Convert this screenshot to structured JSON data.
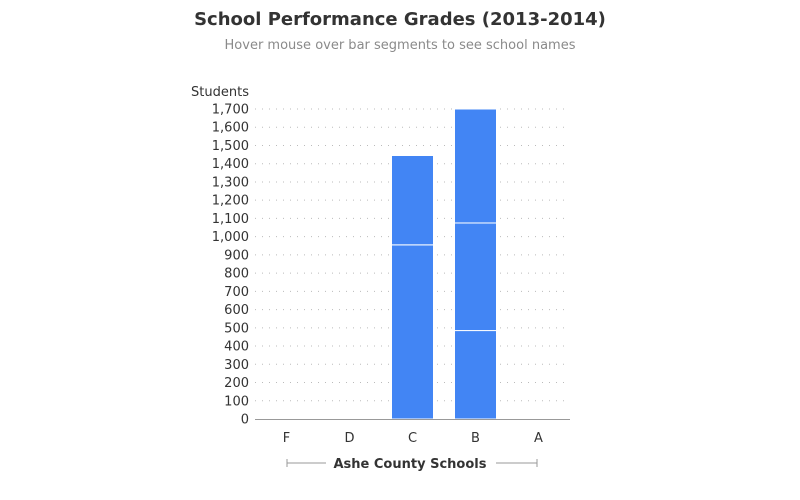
{
  "title": "School Performance Grades (2013-2014)",
  "subtitle": "Hover mouse over bar segments to see school names",
  "colors": {
    "bar": "#4285f4",
    "segment_divider": "#ffffff",
    "grid": "#bbbbbb",
    "axis": "#999999",
    "text": "#333333"
  },
  "chart_data": {
    "type": "bar",
    "stacked": true,
    "categories": [
      "F",
      "D",
      "C",
      "B",
      "A"
    ],
    "segments": [
      [],
      [],
      [
        955,
        490
      ],
      [
        485,
        590,
        625
      ],
      []
    ],
    "totals": [
      0,
      0,
      1445,
      1700,
      0
    ],
    "ylabel": "Students",
    "xlabel": "Ashe County Schools",
    "ylim": [
      0,
      1700
    ],
    "y_ticks": [
      0,
      100,
      200,
      300,
      400,
      500,
      600,
      700,
      800,
      900,
      1000,
      1100,
      1200,
      1300,
      1400,
      1500,
      1600,
      1700
    ],
    "y_tick_labels": [
      "0",
      "100",
      "200",
      "300",
      "400",
      "500",
      "600",
      "700",
      "800",
      "900",
      "1,000",
      "1,100",
      "1,200",
      "1,300",
      "1,400",
      "1,500",
      "1,600",
      "1,700"
    ],
    "grid": "horizontal-dotted"
  }
}
